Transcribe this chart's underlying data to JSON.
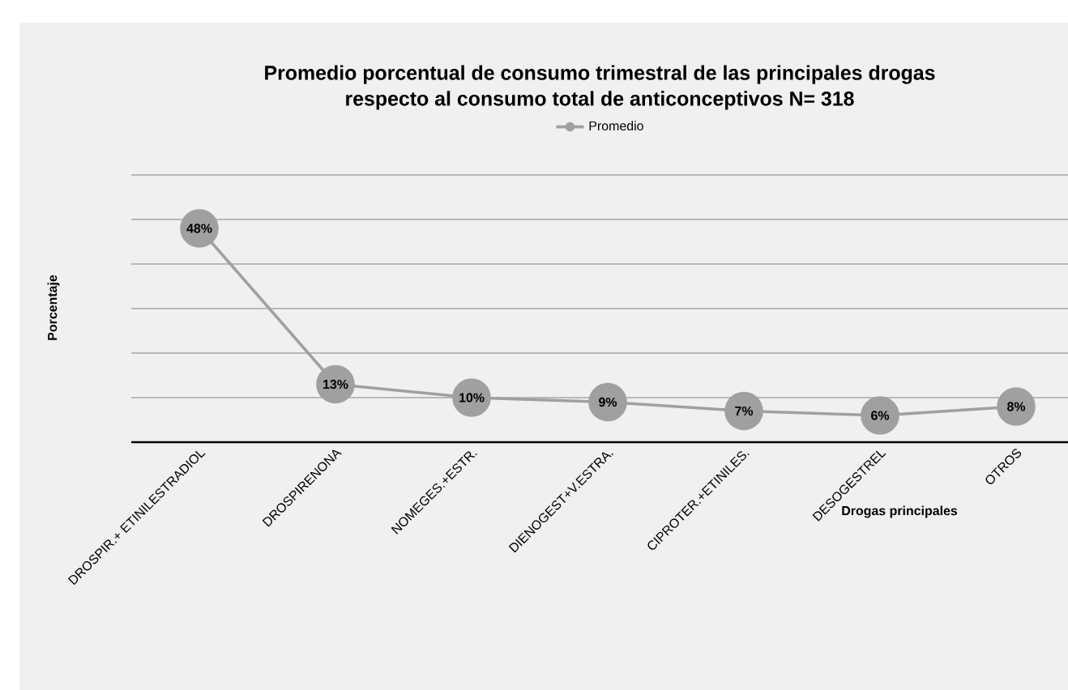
{
  "chart_data": {
    "type": "line",
    "title": "Promedio porcentual de consumo trimestral de las principales drogas\nrespecto al consumo total de anticonceptivos N= 318",
    "xlabel": "Drogas principales",
    "ylabel": "Porcentaje",
    "categories": [
      "DROSPIR.+ ETINILESTRADIOL",
      "DROSPIRENONA",
      "NOMEGES.+ESTR.",
      "DIENOGEST+V.ESTRA.",
      "CIPROTER.+ETINILES.",
      "DESOGESTREL",
      "OTROS"
    ],
    "series": [
      {
        "name": "Promedio",
        "color": "#a0a0a0",
        "values": [
          48,
          13,
          10,
          9,
          7,
          6,
          8
        ],
        "value_labels": [
          "48%",
          "13%",
          "10%",
          "9%",
          "7%",
          "6%",
          "8%"
        ]
      }
    ],
    "ylim": [
      0,
      60
    ],
    "yticks": [
      {
        "value": 0,
        "label": null
      },
      {
        "value": 10,
        "label": null
      },
      {
        "value": 20,
        "label": null
      },
      {
        "value": 30,
        "label": null
      },
      {
        "value": 40,
        "label": null
      },
      {
        "value": 50,
        "label": null
      },
      {
        "value": 60,
        "label": null
      }
    ],
    "tick_labels": "x",
    "grid": "y",
    "legend": "top",
    "marker": "circle",
    "line_style": "solid"
  }
}
